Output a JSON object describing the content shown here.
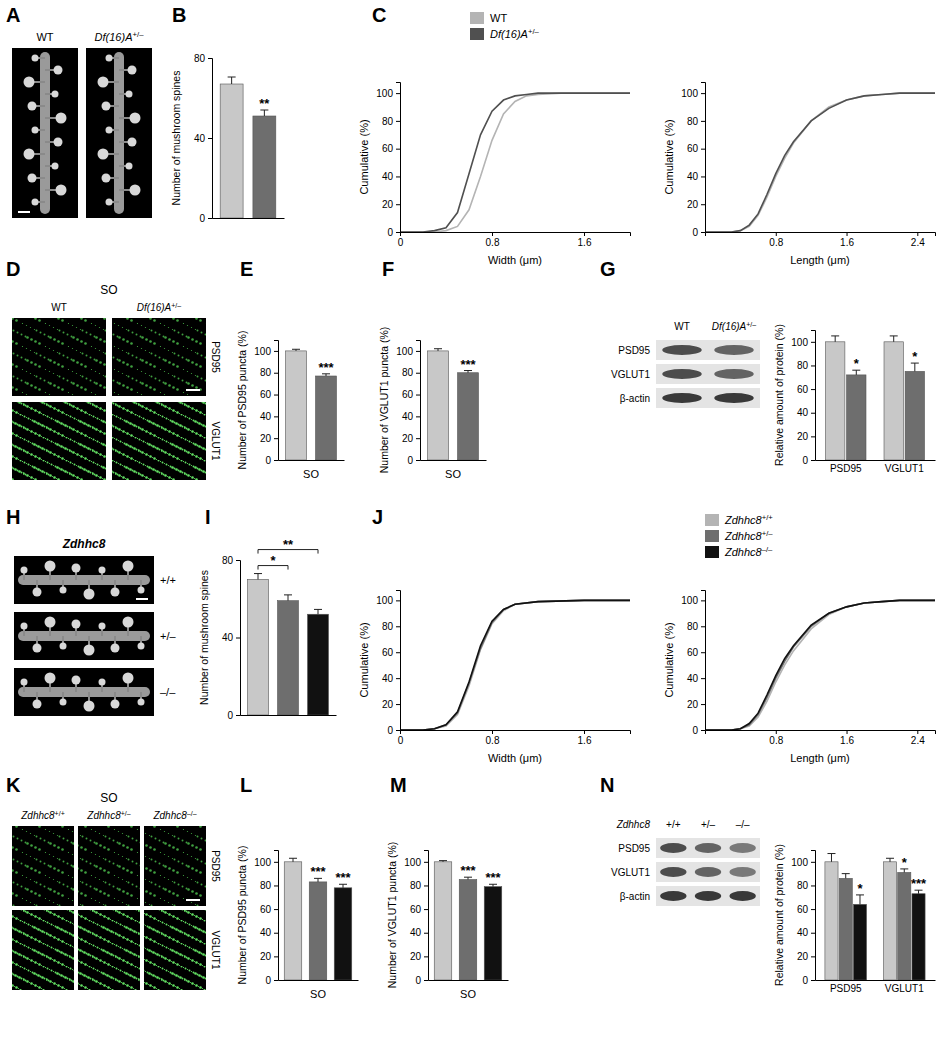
{
  "chart_data": [
    {
      "type": "bar",
      "title": "B",
      "y_label": "Number of mushroom spines",
      "categories": [
        null,
        null
      ],
      "values": [
        67,
        51
      ],
      "errors": [
        3.5,
        3
      ],
      "colors": [
        "#c8c8c8",
        "#6e6e6e"
      ],
      "significance": [
        null,
        "**"
      ],
      "ylim": [
        0,
        80
      ],
      "yticks": [
        0,
        40,
        80
      ]
    },
    {
      "type": "line",
      "title": "C",
      "x_label": "Width (μm)",
      "y_label": "Cumulative (%)",
      "x": [
        0,
        0.2,
        0.3,
        0.4,
        0.5,
        0.6,
        0.7,
        0.8,
        0.9,
        1.0,
        1.1,
        1.2,
        1.4,
        1.6,
        2.0
      ],
      "series": [
        {
          "name": "WT",
          "color": "#b4b4b4",
          "values": [
            0,
            0,
            0,
            1,
            4,
            16,
            40,
            66,
            85,
            94,
            98,
            99,
            100,
            100,
            100
          ]
        },
        {
          "name": "Df(16)A+/–",
          "color": "#505050",
          "values": [
            0,
            0,
            1,
            3,
            14,
            42,
            70,
            87,
            95,
            98,
            99,
            100,
            100,
            100,
            100
          ]
        }
      ],
      "xlim": [
        0,
        2.0
      ],
      "xticks": [
        0,
        0.8,
        1.6
      ],
      "ylim": [
        0,
        108
      ],
      "yticks": [
        0,
        20,
        40,
        60,
        80,
        100
      ],
      "legend": "top"
    },
    {
      "type": "line",
      "x_label": "Length (μm)",
      "y_label": "Cumulative (%)",
      "x": [
        0,
        0.3,
        0.4,
        0.5,
        0.6,
        0.7,
        0.8,
        0.9,
        1.0,
        1.2,
        1.4,
        1.6,
        1.8,
        2.0,
        2.2,
        2.6
      ],
      "series": [
        {
          "color": "#b4b4b4",
          "values": [
            0,
            0,
            1,
            4,
            12,
            25,
            40,
            53,
            64,
            80,
            90,
            95,
            98,
            99,
            100,
            100
          ]
        },
        {
          "color": "#505050",
          "values": [
            0,
            0,
            1,
            5,
            13,
            27,
            42,
            55,
            65,
            80,
            89,
            95,
            98,
            99,
            100,
            100
          ]
        }
      ],
      "xlim": [
        0,
        2.6
      ],
      "xticks": [
        0.8,
        1.6,
        2.4
      ],
      "ylim": [
        0,
        108
      ],
      "yticks": [
        0,
        20,
        40,
        60,
        80,
        100
      ]
    },
    {
      "type": "bar",
      "title": "E",
      "x_label": "SO",
      "y_label": "Number of PSD95 puncta (%)",
      "categories": [
        null,
        null
      ],
      "values": [
        100,
        77
      ],
      "errors": [
        1.5,
        2
      ],
      "colors": [
        "#c8c8c8",
        "#6e6e6e"
      ],
      "significance": [
        null,
        "***"
      ],
      "ylim": [
        0,
        110
      ],
      "yticks": [
        0,
        20,
        40,
        60,
        80,
        100
      ]
    },
    {
      "type": "bar",
      "title": "F",
      "x_label": "SO",
      "y_label": "Number of VGLUT1 puncta (%)",
      "categories": [
        null,
        null
      ],
      "values": [
        100,
        80
      ],
      "errors": [
        2,
        2
      ],
      "colors": [
        "#c8c8c8",
        "#6e6e6e"
      ],
      "significance": [
        null,
        "***"
      ],
      "ylim": [
        0,
        110
      ],
      "yticks": [
        0,
        20,
        40,
        60,
        80,
        100
      ]
    },
    {
      "type": "bar",
      "title": "G",
      "y_label": "Relative amount of protein (%)",
      "categories": [
        "PSD95",
        "VGLUT1"
      ],
      "series": [
        {
          "color": "#c8c8c8",
          "values": [
            100,
            100
          ],
          "errors": [
            5,
            5
          ],
          "significance": [
            null,
            null
          ]
        },
        {
          "color": "#6e6e6e",
          "values": [
            72,
            75
          ],
          "errors": [
            4,
            7
          ],
          "significance": [
            "*",
            "*"
          ]
        }
      ],
      "ylim": [
        0,
        110
      ],
      "yticks": [
        0,
        20,
        40,
        60,
        80,
        100
      ]
    },
    {
      "type": "bar",
      "title": "I",
      "y_label": "Number of mushroom spines",
      "categories": [
        null,
        null,
        null
      ],
      "values": [
        70,
        59,
        52
      ],
      "errors": [
        3,
        3,
        2.5
      ],
      "colors": [
        "#c8c8c8",
        "#6e6e6e",
        "#111111"
      ],
      "comparisons": [
        {
          "from": 0,
          "to": 1,
          "text": "*"
        },
        {
          "from": 0,
          "to": 2,
          "text": "**"
        }
      ],
      "ylim": [
        0,
        80
      ],
      "yticks": [
        0,
        40,
        80
      ]
    },
    {
      "type": "line",
      "title": "J",
      "x_label": "Width (μm)",
      "y_label": "Cumulative (%)",
      "x": [
        0,
        0.2,
        0.3,
        0.4,
        0.5,
        0.6,
        0.7,
        0.8,
        0.9,
        1.0,
        1.2,
        1.6,
        2.0
      ],
      "series": [
        {
          "name": "Zdhhc8+/+",
          "color": "#b4b4b4",
          "values": [
            0,
            0,
            1,
            3,
            12,
            34,
            62,
            82,
            92,
            97,
            99,
            100,
            100
          ]
        },
        {
          "name": "Zdhhc8+/–",
          "color": "#6e6e6e",
          "values": [
            0,
            0,
            1,
            4,
            13,
            36,
            63,
            83,
            93,
            97,
            99,
            100,
            100
          ]
        },
        {
          "name": "Zdhhc8–/–",
          "color": "#111111",
          "values": [
            0,
            0,
            1,
            4,
            14,
            37,
            65,
            84,
            93,
            97,
            99,
            100,
            100
          ]
        }
      ],
      "xlim": [
        0,
        2.0
      ],
      "xticks": [
        0,
        0.8,
        1.6
      ],
      "ylim": [
        0,
        108
      ],
      "yticks": [
        0,
        20,
        40,
        60,
        80,
        100
      ],
      "legend": "top"
    },
    {
      "type": "line",
      "x_label": "Length (μm)",
      "y_label": "Cumulative (%)",
      "x": [
        0,
        0.3,
        0.4,
        0.5,
        0.6,
        0.7,
        0.8,
        0.9,
        1.0,
        1.2,
        1.4,
        1.6,
        1.8,
        2.0,
        2.2,
        2.6
      ],
      "series": [
        {
          "color": "#b4b4b4",
          "values": [
            0,
            0,
            1,
            3,
            10,
            22,
            37,
            50,
            61,
            78,
            89,
            95,
            98,
            99,
            100,
            100
          ]
        },
        {
          "color": "#6e6e6e",
          "values": [
            0,
            0,
            1,
            4,
            12,
            25,
            40,
            53,
            64,
            80,
            90,
            95,
            98,
            99,
            100,
            100
          ]
        },
        {
          "color": "#111111",
          "values": [
            0,
            0,
            1,
            5,
            13,
            27,
            42,
            55,
            65,
            81,
            90,
            95,
            98,
            99,
            100,
            100
          ]
        }
      ],
      "xlim": [
        0,
        2.6
      ],
      "xticks": [
        0.8,
        1.6,
        2.4
      ],
      "ylim": [
        0,
        108
      ],
      "yticks": [
        0,
        20,
        40,
        60,
        80,
        100
      ]
    },
    {
      "type": "bar",
      "title": "L",
      "x_label": "SO",
      "y_label": "Number of PSD95 puncta (%)",
      "categories": [
        null,
        null,
        null
      ],
      "values": [
        100,
        83,
        78
      ],
      "errors": [
        3,
        3,
        3
      ],
      "colors": [
        "#c8c8c8",
        "#6e6e6e",
        "#111111"
      ],
      "significance": [
        null,
        "***",
        "***"
      ],
      "ylim": [
        0,
        110
      ],
      "yticks": [
        0,
        20,
        40,
        60,
        80,
        100
      ]
    },
    {
      "type": "bar",
      "title": "M",
      "x_label": "SO",
      "y_label": "Number of VGLUT1 puncta (%)",
      "categories": [
        null,
        null,
        null
      ],
      "values": [
        100,
        85,
        79
      ],
      "errors": [
        1,
        2,
        2
      ],
      "colors": [
        "#c8c8c8",
        "#6e6e6e",
        "#111111"
      ],
      "significance": [
        null,
        "***",
        "***"
      ],
      "ylim": [
        0,
        110
      ],
      "yticks": [
        0,
        20,
        40,
        60,
        80,
        100
      ]
    },
    {
      "type": "bar",
      "title": "N",
      "y_label": "Relative amount of protein (%)",
      "categories": [
        "PSD95",
        "VGLUT1"
      ],
      "series": [
        {
          "color": "#c8c8c8",
          "values": [
            100,
            100
          ],
          "errors": [
            7,
            3
          ],
          "significance": [
            null,
            null
          ]
        },
        {
          "color": "#6e6e6e",
          "values": [
            86,
            91
          ],
          "errors": [
            4,
            3
          ],
          "significance": [
            null,
            "*"
          ]
        },
        {
          "color": "#111111",
          "values": [
            64,
            73
          ],
          "errors": [
            8,
            3
          ],
          "significance": [
            "*",
            "***"
          ]
        }
      ],
      "ylim": [
        0,
        110
      ],
      "yticks": [
        0,
        20,
        40,
        60,
        80,
        100
      ]
    }
  ],
  "images": [
    {
      "title": "A",
      "columns": [
        "WT",
        "Df(16)A+/–"
      ]
    },
    {
      "title": "D",
      "region": "SO",
      "columns": [
        "WT",
        "Df(16)A+/–"
      ],
      "rows": [
        "PSD95",
        "VGLUT1"
      ]
    },
    {
      "columns": [
        "WT",
        "Df(16)A+/–"
      ],
      "rows": [
        "PSD95",
        "VGLUT1",
        "β-actin"
      ]
    },
    {
      "title": "H",
      "gene": "Zdhhc8",
      "rows": [
        "+/+",
        "+/–",
        "–/–"
      ]
    },
    {
      "title": "K",
      "region": "SO",
      "columns": [
        "Zdhhc8+/+",
        "Zdhhc8+/–",
        "Zdhhc8–/–"
      ],
      "rows": [
        "PSD95",
        "VGLUT1"
      ]
    },
    {
      "gene": "Zdhhc8",
      "columns": [
        "+/+",
        "+/–",
        "–/–"
      ],
      "rows": [
        "PSD95",
        "VGLUT1",
        "β-actin"
      ]
    }
  ]
}
